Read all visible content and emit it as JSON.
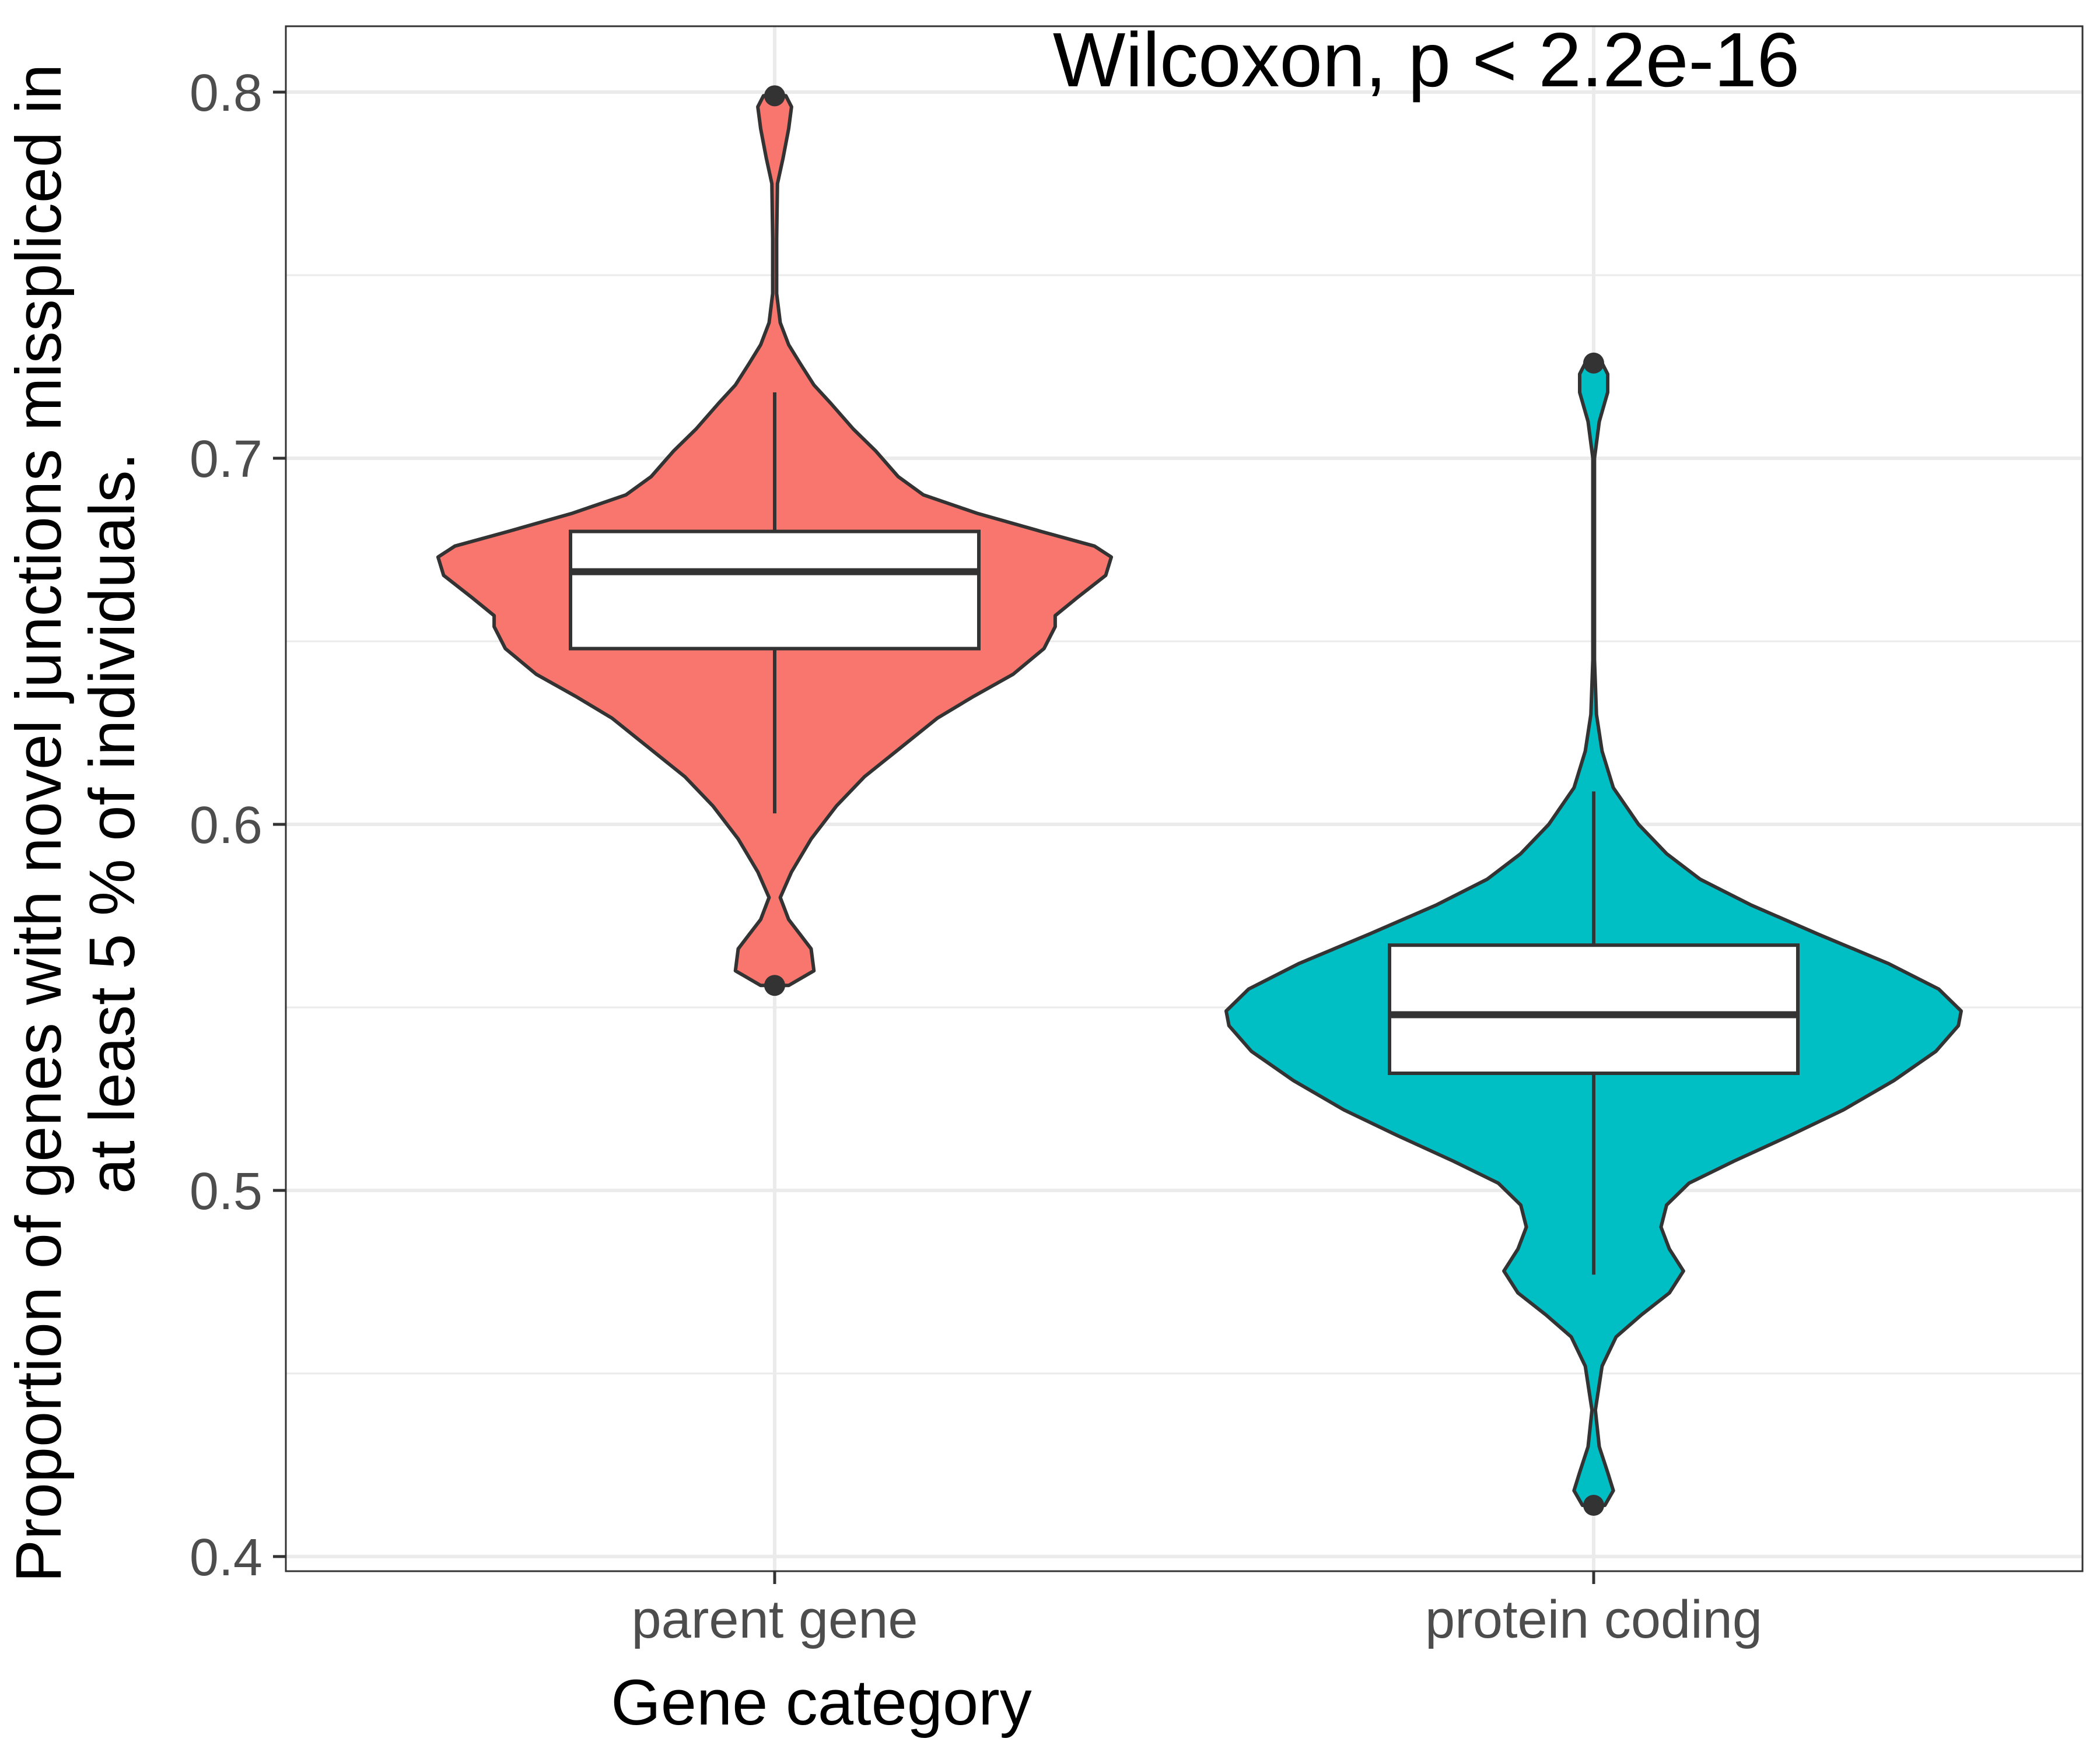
{
  "chart_data": {
    "type": "violin",
    "xlabel": "Gene category",
    "ylabel_lines": [
      "Proportion of genes with novel junctions misspliced in",
      "at least 5 % of individuals."
    ],
    "annotation": "Wilcoxon, p < 2.2e-16",
    "ylim": [
      0.396,
      0.818
    ],
    "yticks": [
      0.4,
      0.5,
      0.6,
      0.7,
      0.8
    ],
    "ytick_labels": [
      "0.4",
      "0.5",
      "0.6",
      "0.7",
      "0.8"
    ],
    "grid": true,
    "legend": "none",
    "categories": [
      "parent gene",
      "protein coding"
    ],
    "groups": [
      {
        "category": "parent gene",
        "fill": "#F8766D",
        "box": {
          "lower_whisker": 0.603,
          "q1": 0.648,
          "median": 0.669,
          "q3": 0.68,
          "upper_whisker": 0.718
        },
        "outliers": [
          0.799,
          0.556
        ],
        "density": [
          [
            0.556,
            0.05
          ],
          [
            0.56,
            0.14
          ],
          [
            0.566,
            0.13
          ],
          [
            0.57,
            0.09
          ],
          [
            0.574,
            0.05
          ],
          [
            0.58,
            0.02
          ],
          [
            0.587,
            0.06
          ],
          [
            0.596,
            0.13
          ],
          [
            0.605,
            0.22
          ],
          [
            0.613,
            0.32
          ],
          [
            0.621,
            0.45
          ],
          [
            0.629,
            0.58
          ],
          [
            0.635,
            0.71
          ],
          [
            0.641,
            0.85
          ],
          [
            0.648,
            0.96
          ],
          [
            0.654,
            1.0
          ],
          [
            0.657,
            1.0
          ],
          [
            0.662,
            1.08
          ],
          [
            0.668,
            1.18
          ],
          [
            0.673,
            1.2
          ],
          [
            0.676,
            1.14
          ],
          [
            0.68,
            0.95
          ],
          [
            0.685,
            0.72
          ],
          [
            0.69,
            0.53
          ],
          [
            0.695,
            0.44
          ],
          [
            0.702,
            0.36
          ],
          [
            0.708,
            0.28
          ],
          [
            0.715,
            0.2
          ],
          [
            0.72,
            0.14
          ],
          [
            0.726,
            0.09
          ],
          [
            0.731,
            0.05
          ],
          [
            0.737,
            0.02
          ],
          [
            0.745,
            0.007
          ],
          [
            0.76,
            0.007
          ],
          [
            0.775,
            0.01
          ],
          [
            0.782,
            0.03
          ],
          [
            0.79,
            0.05
          ],
          [
            0.796,
            0.06
          ],
          [
            0.799,
            0.04
          ]
        ]
      },
      {
        "category": "protein coding",
        "fill": "#00BFC4",
        "box": {
          "lower_whisker": 0.477,
          "q1": 0.532,
          "median": 0.548,
          "q3": 0.567,
          "upper_whisker": 0.609
        },
        "outliers": [
          0.726,
          0.414
        ],
        "density": [
          [
            0.414,
            0.04
          ],
          [
            0.418,
            0.07
          ],
          [
            0.423,
            0.05
          ],
          [
            0.43,
            0.02
          ],
          [
            0.44,
            0.006
          ],
          [
            0.452,
            0.03
          ],
          [
            0.46,
            0.08
          ],
          [
            0.466,
            0.17
          ],
          [
            0.472,
            0.27
          ],
          [
            0.478,
            0.32
          ],
          [
            0.484,
            0.27
          ],
          [
            0.49,
            0.24
          ],
          [
            0.496,
            0.26
          ],
          [
            0.502,
            0.34
          ],
          [
            0.508,
            0.5
          ],
          [
            0.515,
            0.7
          ],
          [
            0.522,
            0.89
          ],
          [
            0.53,
            1.07
          ],
          [
            0.538,
            1.22
          ],
          [
            0.545,
            1.3
          ],
          [
            0.549,
            1.31
          ],
          [
            0.555,
            1.23
          ],
          [
            0.562,
            1.05
          ],
          [
            0.57,
            0.8
          ],
          [
            0.578,
            0.56
          ],
          [
            0.585,
            0.38
          ],
          [
            0.592,
            0.26
          ],
          [
            0.6,
            0.16
          ],
          [
            0.61,
            0.07
          ],
          [
            0.62,
            0.03
          ],
          [
            0.63,
            0.01
          ],
          [
            0.645,
            0.003
          ],
          [
            0.7,
            0.003
          ],
          [
            0.71,
            0.02
          ],
          [
            0.718,
            0.05
          ],
          [
            0.723,
            0.05
          ],
          [
            0.726,
            0.03
          ]
        ]
      }
    ]
  }
}
